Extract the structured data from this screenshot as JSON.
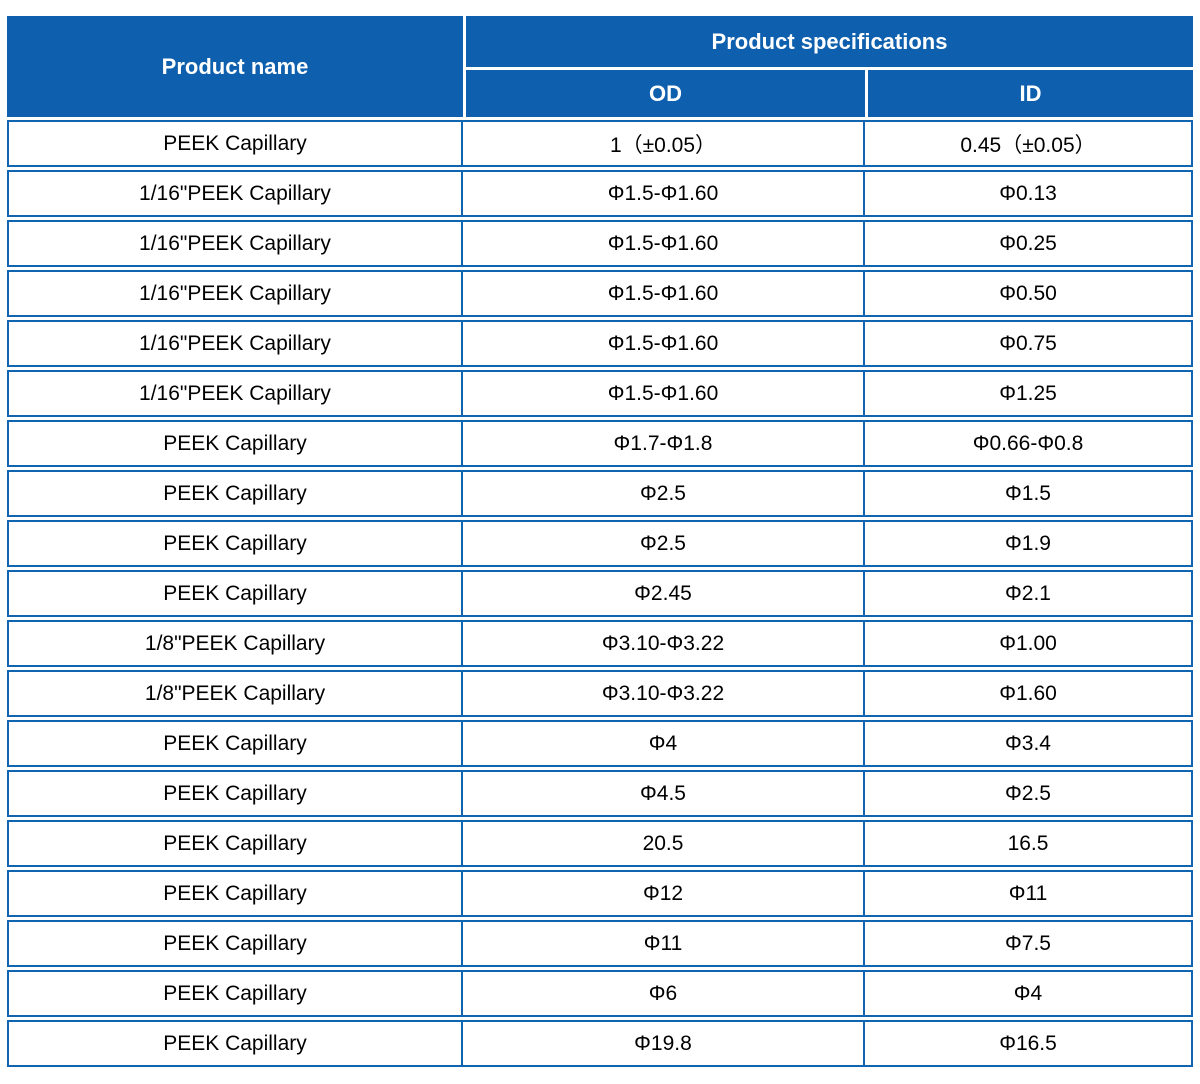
{
  "table": {
    "colors": {
      "header_bg": "#0e5fad",
      "border": "#1065b0",
      "header_text": "#ffffff",
      "body_text": "#000000"
    },
    "header": {
      "product_name": "Product name",
      "product_specifications": "Product specifications",
      "od": "OD",
      "id": "ID"
    },
    "rows": [
      {
        "name": "PEEK Capillary",
        "od": "1（±0.05）",
        "id": "0.45（±0.05）"
      },
      {
        "name": "1/16\"PEEK Capillary",
        "od": "Φ1.5-Φ1.60",
        "id": "Φ0.13"
      },
      {
        "name": "1/16\"PEEK Capillary",
        "od": "Φ1.5-Φ1.60",
        "id": "Φ0.25"
      },
      {
        "name": "1/16\"PEEK Capillary",
        "od": "Φ1.5-Φ1.60",
        "id": "Φ0.50"
      },
      {
        "name": "1/16\"PEEK Capillary",
        "od": "Φ1.5-Φ1.60",
        "id": "Φ0.75"
      },
      {
        "name": "1/16\"PEEK Capillary",
        "od": "Φ1.5-Φ1.60",
        "id": "Φ1.25"
      },
      {
        "name": "PEEK Capillary",
        "od": "Φ1.7-Φ1.8",
        "id": "Φ0.66-Φ0.8"
      },
      {
        "name": "PEEK Capillary",
        "od": "Φ2.5",
        "id": "Φ1.5"
      },
      {
        "name": "PEEK Capillary",
        "od": "Φ2.5",
        "id": "Φ1.9"
      },
      {
        "name": "PEEK Capillary",
        "od": "Φ2.45",
        "id": "Φ2.1"
      },
      {
        "name": "1/8\"PEEK Capillary",
        "od": "Φ3.10-Φ3.22",
        "id": "Φ1.00"
      },
      {
        "name": "1/8\"PEEK Capillary",
        "od": "Φ3.10-Φ3.22",
        "id": "Φ1.60"
      },
      {
        "name": "PEEK Capillary",
        "od": "Φ4",
        "id": "Φ3.4"
      },
      {
        "name": "PEEK Capillary",
        "od": "Φ4.5",
        "id": "Φ2.5"
      },
      {
        "name": "PEEK Capillary",
        "od": "20.5",
        "id": "16.5"
      },
      {
        "name": "PEEK Capillary",
        "od": "Φ12",
        "id": "Φ11"
      },
      {
        "name": "PEEK Capillary",
        "od": "Φ11",
        "id": "Φ7.5"
      },
      {
        "name": "PEEK Capillary",
        "od": "Φ6",
        "id": "Φ4"
      },
      {
        "name": "PEEK Capillary",
        "od": "Φ19.8",
        "id": "Φ16.5"
      }
    ]
  }
}
